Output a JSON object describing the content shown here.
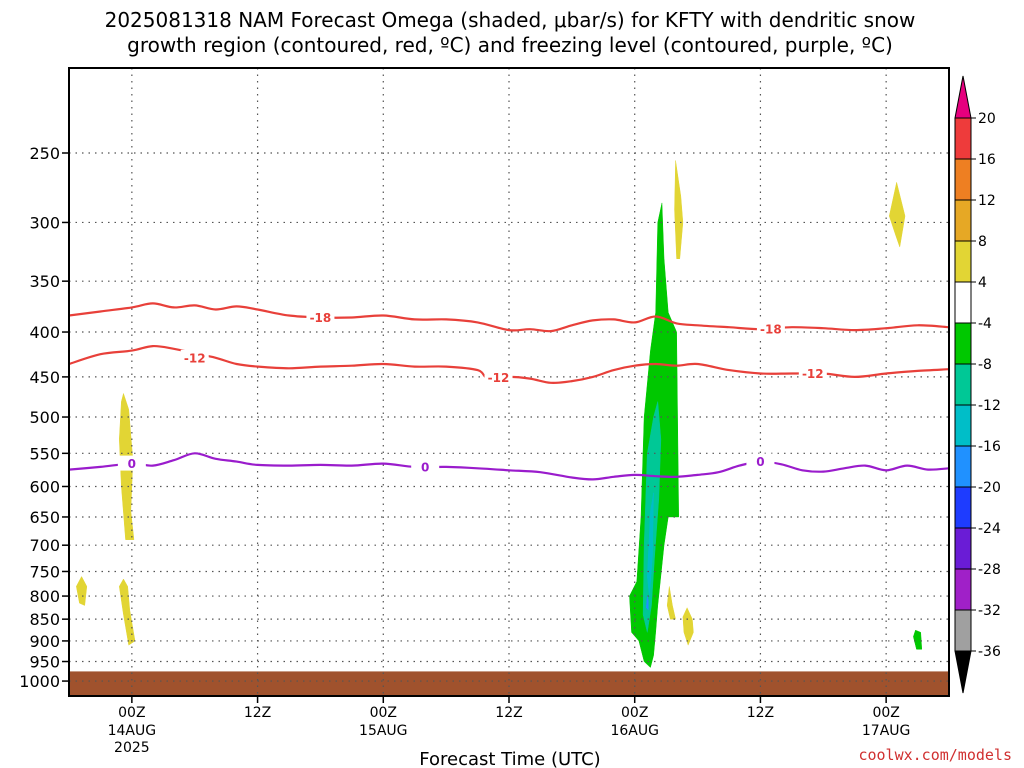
{
  "chart_data": {
    "type": "heatmap",
    "title_line1": "2025081318 NAM Forecast Omega (shaded, μbar/s) for KFTY with dendritic snow",
    "title_line2": "growth region (contoured, red, ºC) and freezing level (contoured, purple, ºC)",
    "xlabel": "Forecast Time (UTC)",
    "ylabel": "",
    "credit": "coolwx.com/models",
    "x_range_hours": [
      -6,
      78
    ],
    "y_range_hPa": [
      200,
      1040
    ],
    "y_scale": "log-pressure",
    "y_ticks": [
      250,
      300,
      350,
      400,
      450,
      500,
      550,
      600,
      650,
      700,
      750,
      800,
      850,
      900,
      950,
      1000
    ],
    "x_ticks": [
      {
        "hour": 0,
        "label": "00Z",
        "date": "14AUG",
        "year": "2025"
      },
      {
        "hour": 12,
        "label": "12Z",
        "date": "",
        "year": ""
      },
      {
        "hour": 24,
        "label": "00Z",
        "date": "15AUG",
        "year": ""
      },
      {
        "hour": 36,
        "label": "12Z",
        "date": "",
        "year": ""
      },
      {
        "hour": 48,
        "label": "00Z",
        "date": "16AUG",
        "year": ""
      },
      {
        "hour": 60,
        "label": "12Z",
        "date": "",
        "year": ""
      },
      {
        "hour": 72,
        "label": "00Z",
        "date": "17AUG",
        "year": ""
      }
    ],
    "grid": true,
    "ground_level_hPa": 975,
    "ground_color": "#a0522d",
    "colorbar": {
      "labels": [
        "20",
        "16",
        "12",
        "8",
        "4",
        "-4",
        "-8",
        "-12",
        "-16",
        "-20",
        "-24",
        "-28",
        "-32",
        "-36"
      ],
      "bins": [
        {
          "from": 20,
          "to": 16,
          "color": "#ee3b3b"
        },
        {
          "from": 16,
          "to": 12,
          "color": "#ee7f22"
        },
        {
          "from": 12,
          "to": 8,
          "color": "#e6a825"
        },
        {
          "from": 8,
          "to": 4,
          "color": "#e2d534"
        },
        {
          "from": 4,
          "to": -4,
          "color": "#ffffff"
        },
        {
          "from": -4,
          "to": -8,
          "color": "#00c800"
        },
        {
          "from": -8,
          "to": -12,
          "color": "#00c896"
        },
        {
          "from": -12,
          "to": -16,
          "color": "#00bec8"
        },
        {
          "from": -16,
          "to": -20,
          "color": "#2091ff"
        },
        {
          "from": -20,
          "to": -24,
          "color": "#1e3cff"
        },
        {
          "from": -24,
          "to": -28,
          "color": "#6a1cd6"
        },
        {
          "from": -28,
          "to": -32,
          "color": "#a020c8"
        },
        {
          "from": -32,
          "to": -36,
          "color": "#a0a0a0"
        }
      ],
      "top_arrow_color": "#e6007e",
      "bottom_arrow_color": "#000000"
    },
    "contours": [
      {
        "value": -18,
        "label": "-18",
        "color": "#e8403a",
        "points": [
          [
            -6,
            383
          ],
          [
            -3,
            379
          ],
          [
            0,
            375
          ],
          [
            2,
            371
          ],
          [
            4,
            375
          ],
          [
            6,
            373
          ],
          [
            8,
            377
          ],
          [
            10,
            374
          ],
          [
            12,
            377
          ],
          [
            15,
            383
          ],
          [
            18,
            385
          ],
          [
            21,
            385
          ],
          [
            24,
            383
          ],
          [
            27,
            387
          ],
          [
            30,
            387
          ],
          [
            33,
            390
          ],
          [
            36,
            398
          ],
          [
            38,
            397
          ],
          [
            40,
            399
          ],
          [
            42,
            393
          ],
          [
            44,
            388
          ],
          [
            46,
            387
          ],
          [
            48,
            390
          ],
          [
            50,
            384
          ],
          [
            52,
            391
          ],
          [
            54,
            393
          ],
          [
            57,
            395
          ],
          [
            60,
            397
          ],
          [
            63,
            395
          ],
          [
            66,
            396
          ],
          [
            69,
            398
          ],
          [
            72,
            396
          ],
          [
            75,
            393
          ],
          [
            78,
            395
          ]
        ],
        "label_positions": [
          [
            18,
            385
          ],
          [
            61,
            397
          ]
        ]
      },
      {
        "value": -12,
        "label": "-12",
        "color": "#e8403a",
        "points": [
          [
            -6,
            435
          ],
          [
            -3,
            424
          ],
          [
            0,
            420
          ],
          [
            2,
            415
          ],
          [
            4,
            418
          ],
          [
            6,
            423
          ],
          [
            8,
            428
          ],
          [
            10,
            435
          ],
          [
            12,
            438
          ],
          [
            15,
            440
          ],
          [
            18,
            438
          ],
          [
            21,
            437
          ],
          [
            24,
            435
          ],
          [
            27,
            438
          ],
          [
            30,
            438
          ],
          [
            33,
            442
          ],
          [
            34,
            452
          ],
          [
            36,
            450
          ],
          [
            38,
            452
          ],
          [
            40,
            457
          ],
          [
            42,
            455
          ],
          [
            44,
            450
          ],
          [
            46,
            442
          ],
          [
            48,
            437
          ],
          [
            50,
            435
          ],
          [
            52,
            437
          ],
          [
            54,
            435
          ],
          [
            57,
            442
          ],
          [
            60,
            446
          ],
          [
            63,
            446
          ],
          [
            66,
            446
          ],
          [
            69,
            450
          ],
          [
            72,
            446
          ],
          [
            75,
            443
          ],
          [
            78,
            441
          ]
        ],
        "label_positions": [
          [
            6,
            428
          ],
          [
            35,
            451
          ],
          [
            65,
            446
          ]
        ]
      },
      {
        "value": 0,
        "label": "0",
        "color": "#9a1ccc",
        "points": [
          [
            -6,
            574
          ],
          [
            -3,
            570
          ],
          [
            0,
            565
          ],
          [
            2,
            568
          ],
          [
            4,
            560
          ],
          [
            6,
            550
          ],
          [
            8,
            558
          ],
          [
            10,
            562
          ],
          [
            12,
            567
          ],
          [
            15,
            568
          ],
          [
            18,
            567
          ],
          [
            21,
            568
          ],
          [
            24,
            565
          ],
          [
            27,
            570
          ],
          [
            30,
            570
          ],
          [
            33,
            572
          ],
          [
            36,
            575
          ],
          [
            39,
            578
          ],
          [
            42,
            586
          ],
          [
            44,
            589
          ],
          [
            46,
            585
          ],
          [
            48,
            582
          ],
          [
            50,
            584
          ],
          [
            52,
            585
          ],
          [
            54,
            582
          ],
          [
            56,
            578
          ],
          [
            58,
            568
          ],
          [
            60,
            562
          ],
          [
            62,
            566
          ],
          [
            64,
            575
          ],
          [
            66,
            577
          ],
          [
            68,
            572
          ],
          [
            70,
            568
          ],
          [
            72,
            575
          ],
          [
            74,
            568
          ],
          [
            76,
            574
          ],
          [
            78,
            572
          ]
        ],
        "label_positions": [
          [
            0,
            565
          ],
          [
            28,
            570
          ],
          [
            60,
            562
          ]
        ]
      }
    ],
    "omega_regions": [
      {
        "name": "yellow-14aug-upper",
        "value_bin": "4..8",
        "color": "#e2d534",
        "polygon": [
          [
            -0.8,
            470
          ],
          [
            -0.3,
            490
          ],
          [
            0.1,
            560
          ],
          [
            -0.1,
            640
          ],
          [
            0.2,
            690
          ],
          [
            -0.6,
            690
          ],
          [
            -1.0,
            600
          ],
          [
            -1.2,
            530
          ],
          [
            -1.0,
            480
          ]
        ]
      },
      {
        "name": "yellow-14aug-lower",
        "value_bin": "4..8",
        "color": "#e2d534",
        "polygon": [
          [
            -0.8,
            765
          ],
          [
            -0.4,
            780
          ],
          [
            -0.2,
            830
          ],
          [
            0.3,
            900
          ],
          [
            -0.3,
            910
          ],
          [
            -0.8,
            840
          ],
          [
            -1.2,
            780
          ]
        ]
      },
      {
        "name": "yellow-left-edge",
        "value_bin": "4..8",
        "color": "#e2d534",
        "polygon": [
          [
            -4.8,
            760
          ],
          [
            -4.3,
            780
          ],
          [
            -4.5,
            820
          ],
          [
            -5.0,
            815
          ],
          [
            -5.3,
            780
          ]
        ]
      },
      {
        "name": "green-16aug-main",
        "value_bin": "-4..-8",
        "color": "#00c800",
        "polygon": [
          [
            48.6,
            650
          ],
          [
            48.9,
            500
          ],
          [
            49.5,
            420
          ],
          [
            50.0,
            380
          ],
          [
            50.2,
            300
          ],
          [
            50.6,
            285
          ],
          [
            50.8,
            330
          ],
          [
            51.2,
            380
          ],
          [
            52.0,
            400
          ],
          [
            52.2,
            650
          ],
          [
            51.2,
            650
          ],
          [
            50.8,
            700
          ],
          [
            50.2,
            820
          ],
          [
            50.0,
            880
          ],
          [
            49.8,
            935
          ],
          [
            49.5,
            965
          ],
          [
            48.9,
            950
          ],
          [
            48.4,
            900
          ],
          [
            47.7,
            880
          ],
          [
            47.5,
            800
          ],
          [
            48.2,
            770
          ]
        ]
      },
      {
        "name": "teal-16aug-core",
        "value_bin": "-8..-12",
        "color": "#00c896",
        "polygon": [
          [
            49.2,
            550
          ],
          [
            49.8,
            500
          ],
          [
            50.2,
            480
          ],
          [
            50.5,
            530
          ],
          [
            50.3,
            620
          ],
          [
            49.9,
            720
          ],
          [
            49.6,
            820
          ],
          [
            49.2,
            880
          ],
          [
            48.8,
            840
          ],
          [
            48.9,
            700
          ]
        ]
      },
      {
        "name": "cyan-16aug-core",
        "value_bin": "-12..-16",
        "color": "#00bec8",
        "polygon": [
          [
            49.5,
            640
          ],
          [
            49.8,
            610
          ],
          [
            49.7,
            720
          ],
          [
            49.4,
            800
          ],
          [
            49.2,
            760
          ]
        ]
      },
      {
        "name": "blue-16aug-core",
        "value_bin": "-16..-20",
        "color": "#2091ff",
        "polygon": [
          [
            49.2,
            800
          ],
          [
            49.3,
            810
          ],
          [
            49.3,
            830
          ],
          [
            49.1,
            825
          ]
        ]
      },
      {
        "name": "yellow-16aug-upper",
        "value_bin": "4..8",
        "color": "#e2d534",
        "polygon": [
          [
            51.9,
            255
          ],
          [
            52.4,
            280
          ],
          [
            52.6,
            300
          ],
          [
            52.3,
            330
          ],
          [
            52.0,
            330
          ],
          [
            51.8,
            290
          ]
        ]
      },
      {
        "name": "yellow-16aug-lower-a",
        "value_bin": "4..8",
        "color": "#e2d534",
        "polygon": [
          [
            51.3,
            780
          ],
          [
            51.6,
            820
          ],
          [
            51.9,
            850
          ],
          [
            51.4,
            850
          ],
          [
            51.1,
            820
          ]
        ]
      },
      {
        "name": "yellow-16aug-lower-b",
        "value_bin": "4..8",
        "color": "#e2d534",
        "polygon": [
          [
            53.0,
            825
          ],
          [
            53.5,
            850
          ],
          [
            53.6,
            880
          ],
          [
            53.1,
            910
          ],
          [
            52.7,
            880
          ],
          [
            52.6,
            845
          ]
        ]
      },
      {
        "name": "yellow-17aug-upper",
        "value_bin": "4..8",
        "color": "#e2d534",
        "polygon": [
          [
            73.0,
            270
          ],
          [
            73.8,
            295
          ],
          [
            73.3,
            320
          ],
          [
            72.9,
            310
          ],
          [
            72.3,
            295
          ]
        ]
      },
      {
        "name": "green-17aug-lower",
        "value_bin": "-4..-8",
        "color": "#00c800",
        "polygon": [
          [
            74.8,
            875
          ],
          [
            75.3,
            880
          ],
          [
            75.4,
            920
          ],
          [
            74.9,
            920
          ],
          [
            74.6,
            890
          ]
        ]
      }
    ]
  }
}
